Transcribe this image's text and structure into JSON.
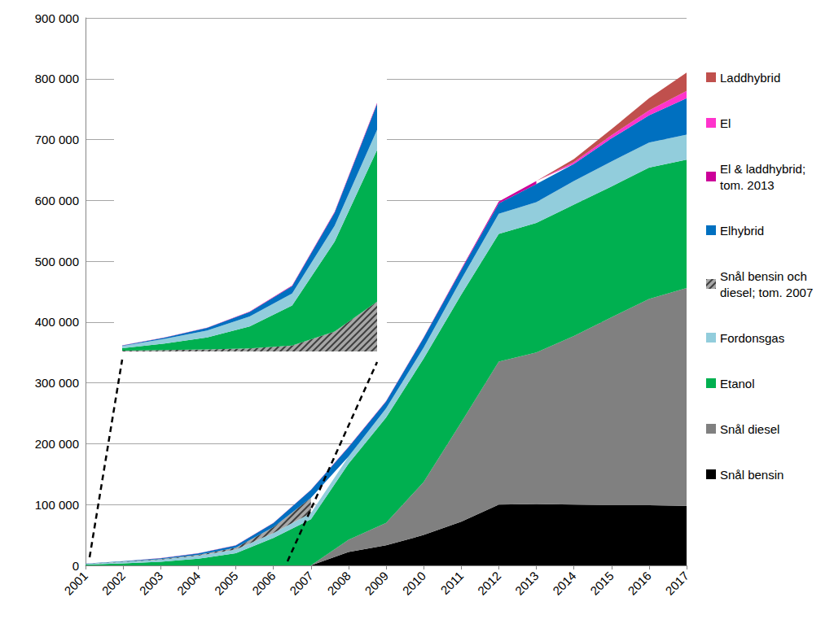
{
  "chart_data": [
    {
      "type": "area",
      "stacked": true,
      "grid": true,
      "legend": "right",
      "categories": [
        "2001",
        "2002",
        "2003",
        "2004",
        "2005",
        "2006",
        "2007",
        "2008",
        "2009",
        "2010",
        "2011",
        "2012",
        "2013",
        "2014",
        "2015",
        "2016",
        "2017"
      ],
      "ylim": [
        0,
        900000
      ],
      "yticks": [
        {
          "value": 0,
          "label": "0"
        },
        {
          "value": 100000,
          "label": "100 000"
        },
        {
          "value": 200000,
          "label": "200 000"
        },
        {
          "value": 300000,
          "label": "300 000"
        },
        {
          "value": 400000,
          "label": "400 000"
        },
        {
          "value": 500000,
          "label": "500 000"
        },
        {
          "value": 600000,
          "label": "600 000"
        },
        {
          "value": 700000,
          "label": "700 000"
        },
        {
          "value": 800000,
          "label": "800 000"
        },
        {
          "value": 900000,
          "label": "900 000"
        }
      ],
      "series": [
        {
          "name": "Snål bensin",
          "color": "#000000",
          "values": [
            null,
            null,
            null,
            null,
            null,
            null,
            0,
            22000,
            33000,
            50000,
            72000,
            100000,
            101000,
            100000,
            99000,
            99000,
            98000
          ]
        },
        {
          "name": "Snål diesel",
          "color": "#808080",
          "values": [
            null,
            null,
            null,
            null,
            null,
            null,
            0,
            20000,
            37000,
            87000,
            163000,
            235000,
            249000,
            277000,
            309000,
            339000,
            358000
          ]
        },
        {
          "name": "Etanol",
          "color": "#00b050",
          "values": [
            1200,
            3300,
            6000,
            11000,
            20000,
            45000,
            76000,
            125000,
            173000,
            203000,
            210000,
            210000,
            213000,
            216000,
            215000,
            216000,
            211000
          ]
        },
        {
          "name": "Fordonsgas",
          "color": "#92cddc",
          "values": [
            1200,
            2300,
            3500,
            5000,
            6000,
            8000,
            10000,
            12000,
            15000,
            18000,
            25000,
            33000,
            34000,
            39000,
            41000,
            41000,
            41000
          ]
        },
        {
          "name": "Snål bensin och diesel; tom. 2007",
          "color": "#404040",
          "line_style": "hatched",
          "values": [
            400,
            700,
            1000,
            1500,
            3000,
            10000,
            25000,
            null,
            null,
            null,
            null,
            null,
            null,
            null,
            null,
            null,
            null
          ]
        },
        {
          "name": "Elhybrid",
          "color": "#0070c0",
          "values": [
            200,
            600,
            1300,
            2300,
            3700,
            6500,
            13000,
            15400,
            11300,
            16000,
            15500,
            17000,
            30000,
            28000,
            38000,
            45000,
            60000
          ]
        },
        {
          "name": "El & laddhybrid; tom. 2013",
          "color": "#cc0099",
          "values": [
            50,
            100,
            150,
            200,
            300,
            400,
            500,
            600,
            700,
            900,
            1500,
            3000,
            5000,
            null,
            null,
            null,
            null
          ]
        },
        {
          "name": "El",
          "color": "#ff33cc",
          "values": [
            null,
            null,
            null,
            null,
            null,
            null,
            null,
            null,
            null,
            null,
            null,
            null,
            0,
            3000,
            5000,
            8000,
            12000
          ]
        },
        {
          "name": "Laddhybrid",
          "color": "#c0504d",
          "values": [
            null,
            null,
            null,
            null,
            null,
            null,
            null,
            null,
            null,
            null,
            null,
            null,
            0,
            5000,
            10000,
            20000,
            30000
          ]
        }
      ]
    },
    {
      "type": "area",
      "stacked": true,
      "grid": false,
      "tick_labels": false,
      "categories": [
        "2001",
        "2002",
        "2003",
        "2004",
        "2005",
        "2006",
        "2007"
      ],
      "ylim": [
        0,
        130000
      ],
      "series": [
        {
          "name": "Snål bensin och diesel; tom. 2007",
          "color": "#404040",
          "line_style": "hatched",
          "values": [
            400,
            700,
            1000,
            1500,
            3000,
            10000,
            25000
          ]
        },
        {
          "name": "Etanol",
          "color": "#00b050",
          "values": [
            1200,
            3300,
            6000,
            11000,
            20000,
            45000,
            76000
          ]
        },
        {
          "name": "Fordonsgas",
          "color": "#92cddc",
          "values": [
            1200,
            2300,
            3500,
            5000,
            6000,
            8000,
            10000
          ]
        },
        {
          "name": "Elhybrid",
          "color": "#0070c0",
          "values": [
            200,
            600,
            1300,
            2300,
            3700,
            6500,
            13000
          ]
        },
        {
          "name": "El & laddhybrid; tom. 2013",
          "color": "#cc0099",
          "values": [
            50,
            100,
            150,
            200,
            300,
            400,
            500
          ]
        }
      ]
    }
  ]
}
